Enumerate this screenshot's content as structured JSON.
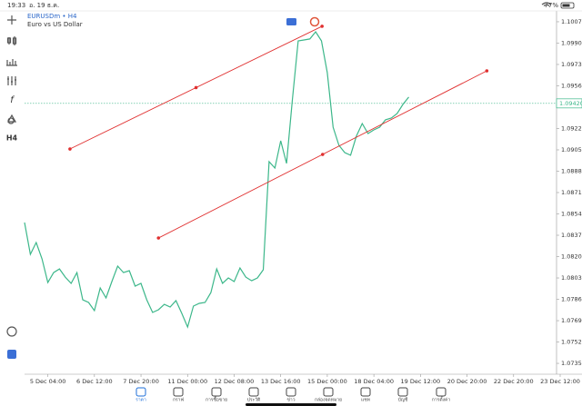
{
  "status_bar": {
    "time": "19:33",
    "date": "อ. 19 ธ.ค.",
    "battery": "77%"
  },
  "toolbar": {
    "timeframe": "H4",
    "function": "f"
  },
  "tabs": [
    "ราคา",
    "กราฟ",
    "การซื้อขาย",
    "ประวัติ",
    "ข่าว",
    "กล่องจดหมาย",
    "แชท",
    "บัญชี",
    "การตั้งค่า"
  ],
  "chart_data": {
    "type": "line",
    "title": "EURUSDm • H4",
    "subtitle": "Euro vs US Dollar",
    "color": "#3cb78a",
    "x": [
      0,
      1,
      2,
      3,
      4,
      5,
      6,
      7,
      8,
      9,
      10,
      11,
      12,
      13,
      14,
      15,
      16,
      17,
      18,
      19,
      20,
      21,
      22,
      23,
      24,
      25,
      26,
      27,
      28,
      29,
      30,
      31,
      32,
      33,
      34,
      35,
      36,
      37,
      38,
      39,
      40,
      41,
      42,
      43,
      44,
      45,
      46,
      47,
      48,
      49,
      50,
      51,
      52,
      53,
      54,
      55,
      56,
      57,
      58,
      59,
      60,
      61,
      62,
      63,
      64,
      65,
      66
    ],
    "values": [
      1.08471,
      1.08218,
      1.08312,
      1.08182,
      1.07994,
      1.08073,
      1.08102,
      1.08037,
      1.07987,
      1.08073,
      1.07856,
      1.07835,
      1.0777,
      1.0795,
      1.07871,
      1.08001,
      1.08124,
      1.08073,
      1.08088,
      1.07965,
      1.07987,
      1.07856,
      1.07755,
      1.07777,
      1.0782,
      1.07799,
      1.07849,
      1.07748,
      1.07639,
      1.07806,
      1.07828,
      1.07835,
      1.07914,
      1.08102,
      1.07987,
      1.0803,
      1.08001,
      1.0811,
      1.08037,
      1.08008,
      1.0803,
      1.08095,
      1.08956,
      1.08905,
      1.09122,
      1.08942,
      1.09448,
      1.09918,
      1.09925,
      1.09933,
      1.0999,
      1.09918,
      1.09665,
      1.09231,
      1.09086,
      1.09028,
      1.09007,
      1.09159,
      1.0926,
      1.0918,
      1.09209,
      1.09231,
      1.09289,
      1.09303,
      1.09339,
      1.09412,
      1.0947
    ],
    "last_price": {
      "value": 1.0942,
      "label": "1.09420"
    },
    "trendlines": [
      {
        "x": [
          7.8,
          51.1
        ],
        "y": [
          1.09057,
          1.10034
        ],
        "color": "#e03030"
      },
      {
        "x": [
          23,
          79.4
        ],
        "y": [
          1.08348,
          1.09679
        ],
        "color": "#e03030"
      }
    ],
    "xlim": [
      0,
      92
    ],
    "ylim": [
      1.07278,
      1.10142
    ],
    "xticks": [
      {
        "value": 4,
        "label": "5 Dec 04:00"
      },
      {
        "value": 12,
        "label": "6 Dec 12:00"
      },
      {
        "value": 20,
        "label": "7 Dec 20:00"
      },
      {
        "value": 28,
        "label": "11 Dec 00:00"
      },
      {
        "value": 36,
        "label": "12 Dec 08:00"
      },
      {
        "value": 44,
        "label": "13 Dec 16:00"
      },
      {
        "value": 52,
        "label": "15 Dec 00:00"
      },
      {
        "value": 60,
        "label": "18 Dec 04:00"
      },
      {
        "value": 68,
        "label": "19 Dec 12:00"
      },
      {
        "value": 76,
        "label": "20 Dec 20:00"
      },
      {
        "value": 84,
        "label": "22 Dec 20:00"
      },
      {
        "value": 92,
        "label": "23 Dec 12:00"
      }
    ],
    "yticks": [
      {
        "value": 1.1007,
        "label": "1.10070"
      },
      {
        "value": 1.099,
        "label": "1.09900"
      },
      {
        "value": 1.0973,
        "label": "1.09730"
      },
      {
        "value": 1.0956,
        "label": "1.09560"
      },
      {
        "value": 1.0922,
        "label": "1.09220"
      },
      {
        "value": 1.0905,
        "label": "1.09050"
      },
      {
        "value": 1.0888,
        "label": "1.08880"
      },
      {
        "value": 1.0871,
        "label": "1.08710"
      },
      {
        "value": 1.0854,
        "label": "1.08540"
      },
      {
        "value": 1.0837,
        "label": "1.08370"
      },
      {
        "value": 1.082,
        "label": "1.08200"
      },
      {
        "value": 1.0803,
        "label": "1.08030"
      },
      {
        "value": 1.0786,
        "label": "1.07860"
      },
      {
        "value": 1.0769,
        "label": "1.07690"
      },
      {
        "value": 1.0752,
        "label": "1.07520"
      },
      {
        "value": 1.0735,
        "label": "1.07350"
      }
    ],
    "grid": false
  }
}
